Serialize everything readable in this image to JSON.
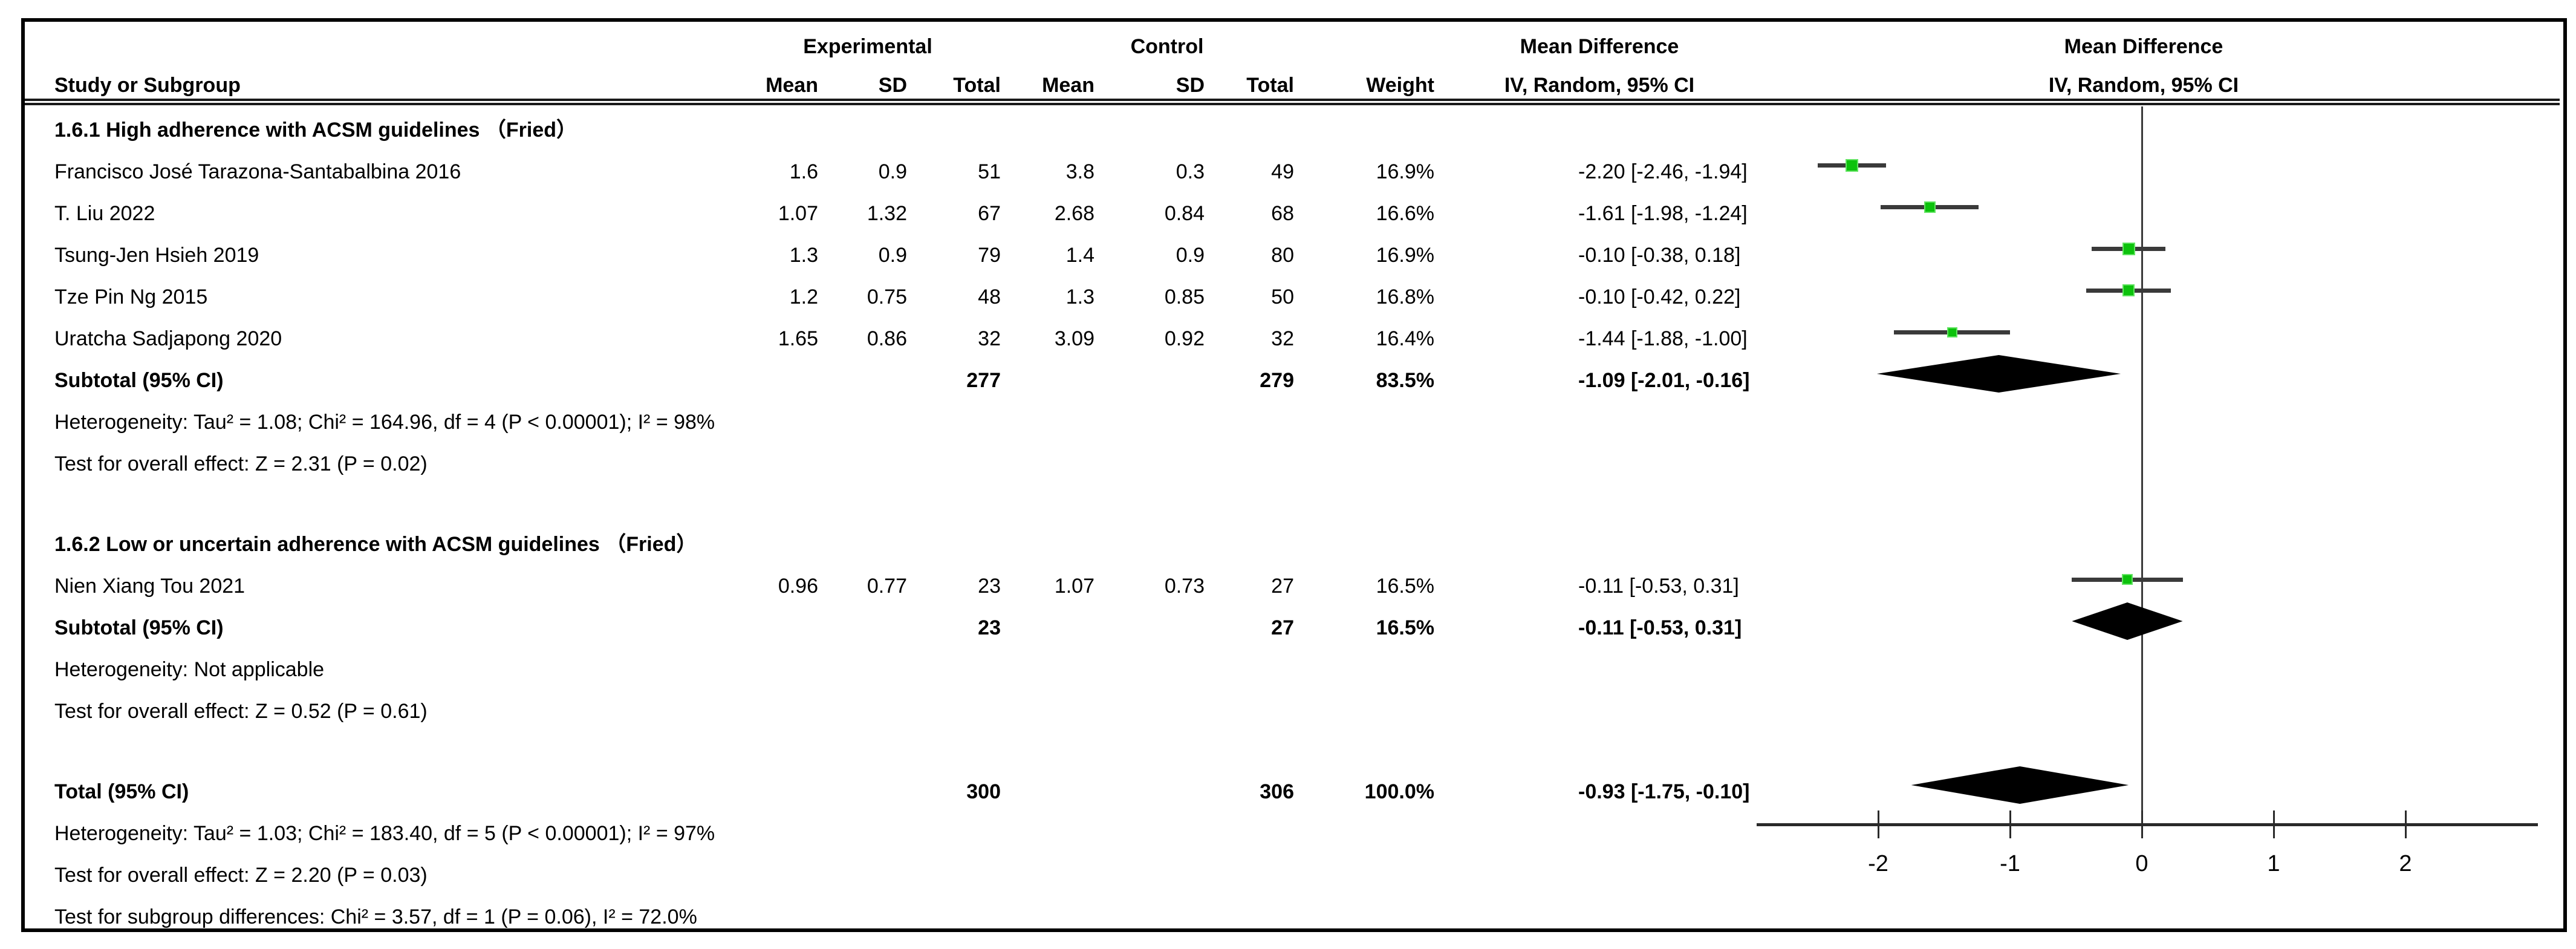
{
  "colors": {
    "marker_green": "#0CC20C",
    "marker_green_edge": "#63E463",
    "ci_line": "#3a3a3a",
    "diamond": "#000000",
    "text": "#000000",
    "border": "#000000"
  },
  "header": {
    "study_col": "Study or Subgroup",
    "group_experimental": "Experimental",
    "group_control": "Control",
    "mean": "Mean",
    "sd": "SD",
    "total": "Total",
    "mean2": "Mean",
    "sd2": "SD",
    "total2": "Total",
    "weight": "Weight",
    "md_title_text_col": "Mean Difference",
    "iv_subtitle_text_col": "IV, Random, 95% CI",
    "md_title_plot_col": "Mean Difference",
    "iv_subtitle_plot_col": "IV, Random, 95% CI"
  },
  "chart_data": {
    "type": "forest",
    "effect_measure": "Mean Difference, IV, Random, 95% CI",
    "axis": {
      "ticks": [
        -2,
        -1,
        0,
        1,
        2
      ],
      "range": [
        -2.95,
        3.0
      ],
      "zero_at": 0
    },
    "sections": [
      {
        "heading": "1.6.1 High adherence with ACSM guidelines （Fried）",
        "studies": [
          {
            "name": "Francisco José Tarazona-Santabalbina 2016",
            "e_mean": "1.6",
            "e_sd": "0.9",
            "e_total": "51",
            "c_mean": "3.8",
            "c_sd": "0.3",
            "c_total": "49",
            "weight": "16.9%",
            "md_label": "-2.20 [-2.46, -1.94]",
            "md": -2.2,
            "lo": -2.46,
            "hi": -1.94
          },
          {
            "name": "T. Liu 2022",
            "e_mean": "1.07",
            "e_sd": "1.32",
            "e_total": "67",
            "c_mean": "2.68",
            "c_sd": "0.84",
            "c_total": "68",
            "weight": "16.6%",
            "md_label": "-1.61 [-1.98, -1.24]",
            "md": -1.61,
            "lo": -1.98,
            "hi": -1.24
          },
          {
            "name": "Tsung-Jen Hsieh 2019",
            "e_mean": "1.3",
            "e_sd": "0.9",
            "e_total": "79",
            "c_mean": "1.4",
            "c_sd": "0.9",
            "c_total": "80",
            "weight": "16.9%",
            "md_label": "-0.10 [-0.38, 0.18]",
            "md": -0.1,
            "lo": -0.38,
            "hi": 0.18
          },
          {
            "name": "Tze Pin Ng 2015",
            "e_mean": "1.2",
            "e_sd": "0.75",
            "e_total": "48",
            "c_mean": "1.3",
            "c_sd": "0.85",
            "c_total": "50",
            "weight": "16.8%",
            "md_label": "-0.10 [-0.42, 0.22]",
            "md": -0.1,
            "lo": -0.42,
            "hi": 0.22
          },
          {
            "name": "Uratcha Sadjapong 2020",
            "e_mean": "1.65",
            "e_sd": "0.86",
            "e_total": "32",
            "c_mean": "3.09",
            "c_sd": "0.92",
            "c_total": "32",
            "weight": "16.4%",
            "md_label": "-1.44 [-1.88, -1.00]",
            "md": -1.44,
            "lo": -1.88,
            "hi": -1.0
          }
        ],
        "subtotal": {
          "label": "Subtotal (95% CI)",
          "e_total": "277",
          "c_total": "279",
          "weight": "83.5%",
          "md_label": "-1.09 [-2.01, -0.16]",
          "md": -1.09,
          "lo": -2.01,
          "hi": -0.16
        },
        "heterogeneity": "Heterogeneity: Tau² = 1.08; Chi² = 164.96, df = 4 (P < 0.00001); I² = 98%",
        "overall_effect": "Test for overall effect: Z = 2.31 (P = 0.02)"
      },
      {
        "heading": "1.6.2 Low or uncertain adherence with ACSM guidelines （Fried）",
        "studies": [
          {
            "name": "Nien Xiang Tou 2021",
            "e_mean": "0.96",
            "e_sd": "0.77",
            "e_total": "23",
            "c_mean": "1.07",
            "c_sd": "0.73",
            "c_total": "27",
            "weight": "16.5%",
            "md_label": "-0.11 [-0.53, 0.31]",
            "md": -0.11,
            "lo": -0.53,
            "hi": 0.31
          }
        ],
        "subtotal": {
          "label": "Subtotal (95% CI)",
          "e_total": "23",
          "c_total": "27",
          "weight": "16.5%",
          "md_label": "-0.11 [-0.53, 0.31]",
          "md": -0.11,
          "lo": -0.53,
          "hi": 0.31
        },
        "heterogeneity": "Heterogeneity: Not applicable",
        "overall_effect": "Test for overall effect: Z = 0.52 (P = 0.61)"
      }
    ],
    "total": {
      "label": "Total (95% CI)",
      "e_total": "300",
      "c_total": "306",
      "weight": "100.0%",
      "md_label": "-0.93 [-1.75, -0.10]",
      "md": -0.93,
      "lo": -1.75,
      "hi": -0.1,
      "heterogeneity": "Heterogeneity: Tau² = 1.03; Chi² = 183.40, df = 5 (P < 0.00001); I² = 97%",
      "overall_effect": "Test for overall effect: Z = 2.20 (P = 0.03)",
      "subgroup_test": "Test for subgroup differences: Chi² = 3.57, df = 1 (P = 0.06), I² = 72.0%"
    }
  }
}
